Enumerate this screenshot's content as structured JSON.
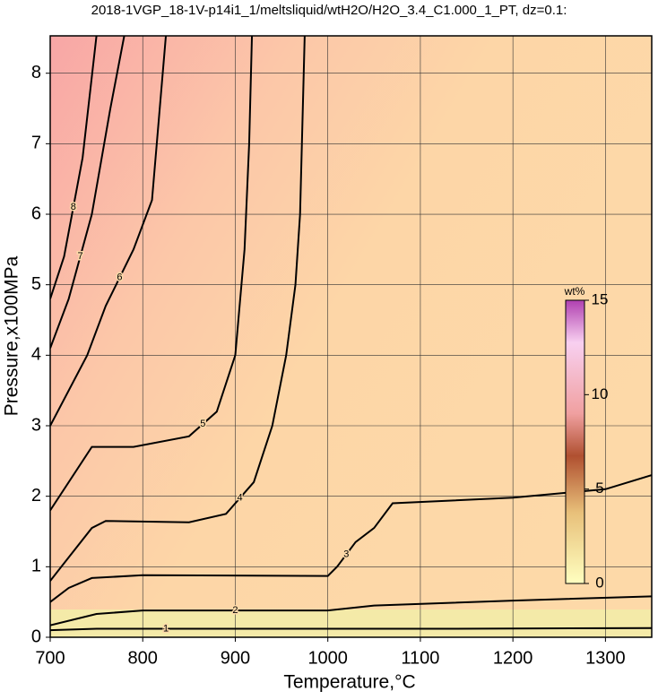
{
  "chart_data": {
    "type": "contour",
    "title": "2018-1VGP_18-1V-p14i1_1/meltsliquid/wtH2O/H2O_3.4_C1.000_1_PT, dz=0.1:",
    "x_label": "Temperature,°C",
    "y_label": "Pressure,x100MPa",
    "xlim": [
      700,
      1350
    ],
    "ylim": [
      0,
      8.53
    ],
    "xticks": [
      700,
      800,
      900,
      1000,
      1100,
      1200,
      1300
    ],
    "yticks": [
      0,
      1,
      2,
      3,
      4,
      5,
      6,
      7,
      8
    ],
    "grid": true,
    "color": "#000000",
    "series": [
      {
        "name": "1",
        "x": [
          700,
          750,
          900,
          1100,
          1350
        ],
        "values": [
          0.1,
          0.12,
          0.12,
          0.12,
          0.13
        ]
      },
      {
        "name": "2",
        "x": [
          700,
          750,
          800,
          1000,
          1050,
          1200,
          1350
        ],
        "values": [
          0.17,
          0.33,
          0.38,
          0.38,
          0.45,
          0.52,
          0.58
        ]
      },
      {
        "name": "3",
        "x": [
          700,
          720,
          745,
          800,
          1000,
          1010,
          1030,
          1050,
          1070,
          1200,
          1300,
          1350
        ],
        "values": [
          0.5,
          0.7,
          0.84,
          0.88,
          0.87,
          1.0,
          1.35,
          1.55,
          1.9,
          1.98,
          2.1,
          2.3
        ]
      },
      {
        "name": "4",
        "x": [
          700,
          745,
          760,
          850,
          890,
          920,
          940,
          955,
          965,
          970,
          975
        ],
        "values": [
          0.8,
          1.55,
          1.65,
          1.63,
          1.75,
          2.2,
          3,
          4,
          5,
          6,
          8.53
        ]
      },
      {
        "name": "5",
        "x": [
          700,
          745,
          790,
          850,
          880,
          900,
          910,
          915,
          918
        ],
        "values": [
          1.8,
          2.7,
          2.7,
          2.85,
          3.2,
          4,
          5.5,
          7,
          8.53
        ]
      },
      {
        "name": "6",
        "x": [
          700,
          740,
          760,
          790,
          810,
          825
        ],
        "values": [
          3.0,
          4.0,
          4.7,
          5.5,
          6.2,
          8.53
        ]
      },
      {
        "name": "7",
        "x": [
          700,
          720,
          745,
          765,
          780
        ],
        "values": [
          4.1,
          4.8,
          6.0,
          7.5,
          8.53
        ]
      },
      {
        "name": "8",
        "x": [
          700,
          715,
          735,
          750
        ],
        "values": [
          4.8,
          5.4,
          6.8,
          8.53
        ]
      }
    ],
    "colorbar": {
      "label": "wt%",
      "lim": [
        0,
        15
      ],
      "ticks": [
        0,
        5,
        10,
        15
      ]
    }
  }
}
